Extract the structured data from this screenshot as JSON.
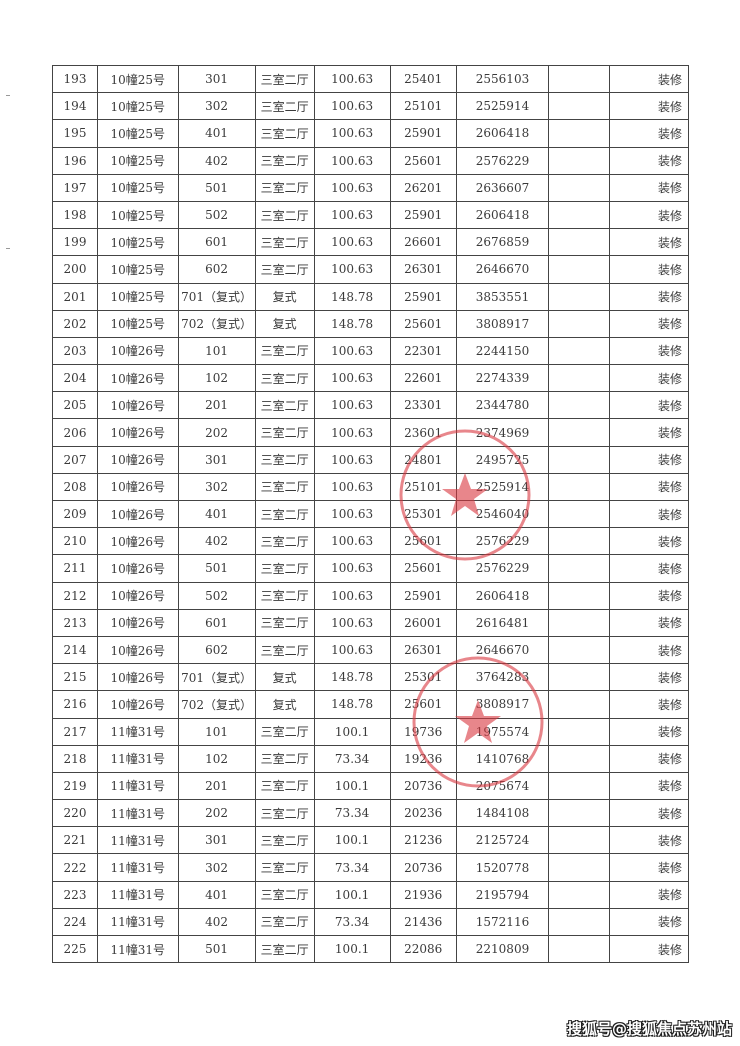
{
  "table": {
    "rows": [
      [
        "193",
        "10幢25号",
        "301",
        "三室二厅",
        "100.63",
        "25401",
        "2556103",
        "",
        "装修"
      ],
      [
        "194",
        "10幢25号",
        "302",
        "三室二厅",
        "100.63",
        "25101",
        "2525914",
        "",
        "装修"
      ],
      [
        "195",
        "10幢25号",
        "401",
        "三室二厅",
        "100.63",
        "25901",
        "2606418",
        "",
        "装修"
      ],
      [
        "196",
        "10幢25号",
        "402",
        "三室二厅",
        "100.63",
        "25601",
        "2576229",
        "",
        "装修"
      ],
      [
        "197",
        "10幢25号",
        "501",
        "三室二厅",
        "100.63",
        "26201",
        "2636607",
        "",
        "装修"
      ],
      [
        "198",
        "10幢25号",
        "502",
        "三室二厅",
        "100.63",
        "25901",
        "2606418",
        "",
        "装修"
      ],
      [
        "199",
        "10幢25号",
        "601",
        "三室二厅",
        "100.63",
        "26601",
        "2676859",
        "",
        "装修"
      ],
      [
        "200",
        "10幢25号",
        "602",
        "三室二厅",
        "100.63",
        "26301",
        "2646670",
        "",
        "装修"
      ],
      [
        "201",
        "10幢25号",
        "701（复式）",
        "复式",
        "148.78",
        "25901",
        "3853551",
        "",
        "装修"
      ],
      [
        "202",
        "10幢25号",
        "702（复式）",
        "复式",
        "148.78",
        "25601",
        "3808917",
        "",
        "装修"
      ],
      [
        "203",
        "10幢26号",
        "101",
        "三室二厅",
        "100.63",
        "22301",
        "2244150",
        "",
        "装修"
      ],
      [
        "204",
        "10幢26号",
        "102",
        "三室二厅",
        "100.63",
        "22601",
        "2274339",
        "",
        "装修"
      ],
      [
        "205",
        "10幢26号",
        "201",
        "三室二厅",
        "100.63",
        "23301",
        "2344780",
        "",
        "装修"
      ],
      [
        "206",
        "10幢26号",
        "202",
        "三室二厅",
        "100.63",
        "23601",
        "2374969",
        "",
        "装修"
      ],
      [
        "207",
        "10幢26号",
        "301",
        "三室二厅",
        "100.63",
        "24801",
        "2495725",
        "",
        "装修"
      ],
      [
        "208",
        "10幢26号",
        "302",
        "三室二厅",
        "100.63",
        "25101",
        "2525914",
        "",
        "装修"
      ],
      [
        "209",
        "10幢26号",
        "401",
        "三室二厅",
        "100.63",
        "25301",
        "2546040",
        "",
        "装修"
      ],
      [
        "210",
        "10幢26号",
        "402",
        "三室二厅",
        "100.63",
        "25601",
        "2576229",
        "",
        "装修"
      ],
      [
        "211",
        "10幢26号",
        "501",
        "三室二厅",
        "100.63",
        "25601",
        "2576229",
        "",
        "装修"
      ],
      [
        "212",
        "10幢26号",
        "502",
        "三室二厅",
        "100.63",
        "25901",
        "2606418",
        "",
        "装修"
      ],
      [
        "213",
        "10幢26号",
        "601",
        "三室二厅",
        "100.63",
        "26001",
        "2616481",
        "",
        "装修"
      ],
      [
        "214",
        "10幢26号",
        "602",
        "三室二厅",
        "100.63",
        "26301",
        "2646670",
        "",
        "装修"
      ],
      [
        "215",
        "10幢26号",
        "701（复式）",
        "复式",
        "148.78",
        "25301",
        "3764283",
        "",
        "装修"
      ],
      [
        "216",
        "10幢26号",
        "702（复式）",
        "复式",
        "148.78",
        "25601",
        "3808917",
        "",
        "装修"
      ],
      [
        "217",
        "11幢31号",
        "101",
        "三室二厅",
        "100.1",
        "19736",
        "1975574",
        "",
        "装修"
      ],
      [
        "218",
        "11幢31号",
        "102",
        "三室二厅",
        "73.34",
        "19236",
        "1410768",
        "",
        "装修"
      ],
      [
        "219",
        "11幢31号",
        "201",
        "三室二厅",
        "100.1",
        "20736",
        "2075674",
        "",
        "装修"
      ],
      [
        "220",
        "11幢31号",
        "202",
        "三室二厅",
        "73.34",
        "20236",
        "1484108",
        "",
        "装修"
      ],
      [
        "221",
        "11幢31号",
        "301",
        "三室二厅",
        "100.1",
        "21236",
        "2125724",
        "",
        "装修"
      ],
      [
        "222",
        "11幢31号",
        "302",
        "三室二厅",
        "73.34",
        "20736",
        "1520778",
        "",
        "装修"
      ],
      [
        "223",
        "11幢31号",
        "401",
        "三室二厅",
        "100.1",
        "21936",
        "2195794",
        "",
        "装修"
      ],
      [
        "224",
        "11幢31号",
        "402",
        "三室二厅",
        "73.34",
        "21436",
        "1572116",
        "",
        "装修"
      ],
      [
        "225",
        "11幢31号",
        "501",
        "三室二厅",
        "100.1",
        "22086",
        "2210809",
        "",
        "装修"
      ]
    ]
  },
  "stamps": {
    "color": "#d9363e"
  },
  "watermark": "搜狐号@搜狐焦点苏州站"
}
